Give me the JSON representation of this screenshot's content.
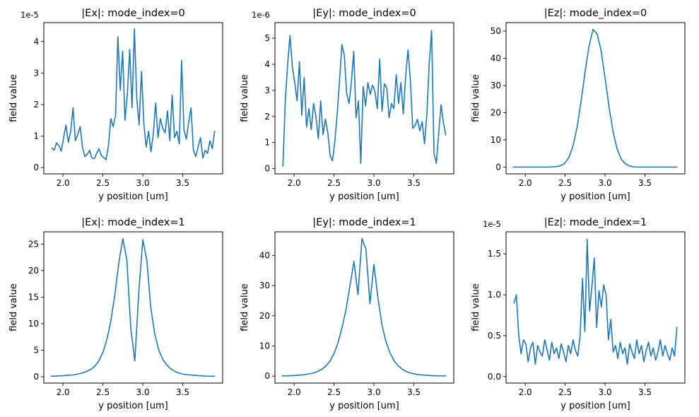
{
  "figure": {
    "background": "#ffffff",
    "line_color": "#1f77b4",
    "frame_color": "#000000"
  },
  "chart_data": [
    {
      "type": "line",
      "title": "|Ex|: mode_index=0",
      "xlabel": "y position [um]",
      "ylabel": "field value",
      "offset_label": "1e-5",
      "xlim": [
        1.76,
        4.0
      ],
      "ylim": [
        -0.2,
        4.6
      ],
      "xtick_values": [
        2.0,
        2.5,
        3.0,
        3.5
      ],
      "xtick_labels": [
        "2.0",
        "2.5",
        "3.0",
        "3.5"
      ],
      "ytick_values": [
        0,
        1,
        2,
        3,
        4
      ],
      "ytick_labels": [
        "0",
        "1",
        "2",
        "3",
        "4"
      ],
      "x_start": 1.86,
      "x_end": 3.9,
      "y": [
        0.62,
        0.55,
        0.78,
        0.7,
        0.52,
        0.95,
        1.35,
        0.8,
        1.15,
        1.9,
        0.85,
        1.05,
        1.3,
        0.65,
        0.35,
        0.42,
        0.55,
        0.3,
        0.28,
        0.45,
        0.6,
        0.38,
        0.32,
        0.25,
        0.7,
        1.55,
        1.3,
        1.65,
        4.15,
        2.45,
        3.7,
        1.5,
        2.3,
        3.75,
        1.9,
        4.4,
        2.2,
        1.35,
        3.05,
        1.4,
        0.65,
        1.15,
        0.5,
        1.05,
        2.05,
        0.95,
        1.55,
        1.25,
        1.1,
        1.8,
        0.85,
        2.3,
        0.95,
        1.15,
        0.75,
        3.4,
        1.2,
        0.9,
        1.45,
        1.9,
        0.55,
        0.35,
        0.65,
        0.95,
        0.3,
        0.55,
        0.45,
        0.85,
        0.6,
        1.15
      ]
    },
    {
      "type": "line",
      "title": "|Ey|: mode_index=0",
      "xlabel": "y position [um]",
      "ylabel": "field value",
      "offset_label": "1e-6",
      "xlim": [
        1.76,
        4.0
      ],
      "ylim": [
        -0.2,
        5.6
      ],
      "xtick_values": [
        2.0,
        2.5,
        3.0,
        3.5
      ],
      "xtick_labels": [
        "2.0",
        "2.5",
        "3.0",
        "3.5"
      ],
      "ytick_values": [
        0,
        1,
        2,
        3,
        4,
        5
      ],
      "ytick_labels": [
        "0",
        "1",
        "2",
        "3",
        "4",
        "5"
      ],
      "x_start": 1.86,
      "x_end": 3.9,
      "y": [
        0.1,
        2.6,
        4.0,
        5.1,
        3.9,
        3.3,
        2.6,
        4.1,
        2.05,
        3.5,
        1.6,
        2.3,
        1.5,
        2.5,
        2.0,
        1.15,
        2.6,
        1.3,
        1.9,
        1.4,
        0.5,
        0.3,
        1.05,
        2.1,
        3.4,
        4.75,
        4.35,
        2.9,
        2.5,
        3.3,
        4.5,
        1.95,
        2.6,
        0.2,
        3.15,
        2.4,
        3.3,
        2.85,
        3.2,
        2.95,
        2.3,
        4.2,
        2.2,
        3.25,
        3.1,
        1.95,
        2.5,
        2.3,
        3.6,
        2.5,
        3.3,
        2.1,
        3.55,
        4.55,
        3.4,
        1.55,
        1.65,
        1.9,
        1.45,
        1.8,
        0.95,
        2.1,
        4.05,
        5.3,
        0.6,
        0.2,
        1.35,
        2.45,
        1.75,
        1.3
      ]
    },
    {
      "type": "line",
      "title": "|Ez|: mode_index=0",
      "xlabel": "y position [um]",
      "ylabel": "field value",
      "offset_label": "",
      "xlim": [
        1.76,
        4.0
      ],
      "ylim": [
        -2.5,
        53.1
      ],
      "xtick_values": [
        2.0,
        2.5,
        3.0,
        3.5
      ],
      "xtick_labels": [
        "2.0",
        "2.5",
        "3.0",
        "3.5"
      ],
      "ytick_values": [
        0,
        10,
        20,
        30,
        40,
        50
      ],
      "ytick_labels": [
        "0",
        "10",
        "20",
        "30",
        "40",
        "50"
      ],
      "x_start": 1.85,
      "x_end": 3.9,
      "y": [
        0,
        0,
        0,
        0,
        0,
        0,
        0,
        0,
        0,
        0,
        0.1,
        0.2,
        0.6,
        1.5,
        3.7,
        7.9,
        14.7,
        24.2,
        35.0,
        44.6,
        50.6,
        49.0,
        42.9,
        32.8,
        22.1,
        13.1,
        6.8,
        3.1,
        1.3,
        0.5,
        0.1,
        0,
        0,
        0,
        0,
        0,
        0,
        0,
        0,
        0,
        0,
        0
      ]
    },
    {
      "type": "line",
      "title": "|Ex|: mode_index=1",
      "xlabel": "y position [um]",
      "ylabel": "field value",
      "offset_label": "",
      "xlim": [
        1.76,
        4.0
      ],
      "ylim": [
        -1.2,
        27.3
      ],
      "xtick_values": [
        2.0,
        2.5,
        3.0,
        3.5
      ],
      "xtick_labels": [
        "2.0",
        "2.5",
        "3.0",
        "3.5"
      ],
      "ytick_values": [
        0,
        5,
        10,
        15,
        20,
        25
      ],
      "ytick_labels": [
        "0",
        "5",
        "10",
        "15",
        "20",
        "25"
      ],
      "x_start": 1.85,
      "x_end": 3.9,
      "y": [
        0.1,
        0.1,
        0.15,
        0.2,
        0.25,
        0.3,
        0.4,
        0.55,
        0.75,
        1.0,
        1.4,
        2.0,
        3.0,
        4.6,
        7.0,
        10.5,
        15.5,
        21.5,
        26.0,
        22.0,
        9.0,
        3.0,
        16.0,
        25.8,
        22.0,
        13.0,
        8.0,
        5.0,
        3.3,
        2.2,
        1.5,
        1.0,
        0.7,
        0.5,
        0.4,
        0.3,
        0.25,
        0.2,
        0.15,
        0.1,
        0.1,
        0.1
      ]
    },
    {
      "type": "line",
      "title": "|Ey|: mode_index=1",
      "xlabel": "y position [um]",
      "ylabel": "field value",
      "offset_label": "",
      "xlim": [
        1.76,
        4.0
      ],
      "ylim": [
        -2.3,
        47.8
      ],
      "xtick_values": [
        2.0,
        2.5,
        3.0,
        3.5
      ],
      "xtick_labels": [
        "2.0",
        "2.5",
        "3.0",
        "3.5"
      ],
      "ytick_values": [
        0,
        10,
        20,
        30,
        40
      ],
      "ytick_labels": [
        "0",
        "10",
        "20",
        "30",
        "40"
      ],
      "x_start": 1.85,
      "x_end": 3.9,
      "y": [
        0.1,
        0.1,
        0.15,
        0.2,
        0.3,
        0.4,
        0.6,
        0.8,
        1.1,
        1.6,
        2.3,
        3.4,
        5.0,
        7.5,
        11.0,
        16.0,
        22.0,
        30.0,
        38.0,
        27.0,
        45.5,
        42.0,
        24.0,
        37.0,
        26.0,
        17.0,
        11.5,
        7.8,
        5.2,
        3.5,
        2.4,
        1.6,
        1.1,
        0.8,
        0.5,
        0.4,
        0.3,
        0.2,
        0.15,
        0.1,
        0.1,
        0.1
      ]
    },
    {
      "type": "line",
      "title": "|Ez|: mode_index=1",
      "xlabel": "y position [um]",
      "ylabel": "field value",
      "offset_label": "1e-5",
      "xlim": [
        1.76,
        4.0
      ],
      "ylim": [
        -0.08,
        1.77
      ],
      "xtick_values": [
        2.0,
        2.5,
        3.0,
        3.5
      ],
      "xtick_labels": [
        "2.0",
        "2.5",
        "3.0",
        "3.5"
      ],
      "ytick_values": [
        0,
        0.5,
        1.0,
        1.5
      ],
      "ytick_labels": [
        "0.0",
        "0.5",
        "1.0",
        "1.5"
      ],
      "x_start": 1.86,
      "x_end": 3.9,
      "y": [
        0.9,
        1.0,
        0.5,
        0.28,
        0.45,
        0.4,
        0.18,
        0.35,
        0.42,
        0.15,
        0.38,
        0.3,
        0.25,
        0.45,
        0.33,
        0.2,
        0.42,
        0.28,
        0.35,
        0.22,
        0.4,
        0.3,
        0.18,
        0.38,
        0.28,
        0.45,
        0.32,
        0.25,
        0.5,
        1.2,
        0.55,
        1.68,
        0.8,
        1.1,
        1.45,
        0.6,
        1.05,
        0.85,
        1.12,
        1.0,
        0.45,
        0.7,
        0.3,
        0.38,
        0.22,
        0.42,
        0.28,
        0.35,
        0.15,
        0.4,
        0.3,
        0.22,
        0.45,
        0.28,
        0.38,
        0.18,
        0.32,
        0.42,
        0.25,
        0.35,
        0.2,
        0.3,
        0.45,
        0.25,
        0.38,
        0.28,
        0.2,
        0.35,
        0.25,
        0.6
      ]
    }
  ]
}
